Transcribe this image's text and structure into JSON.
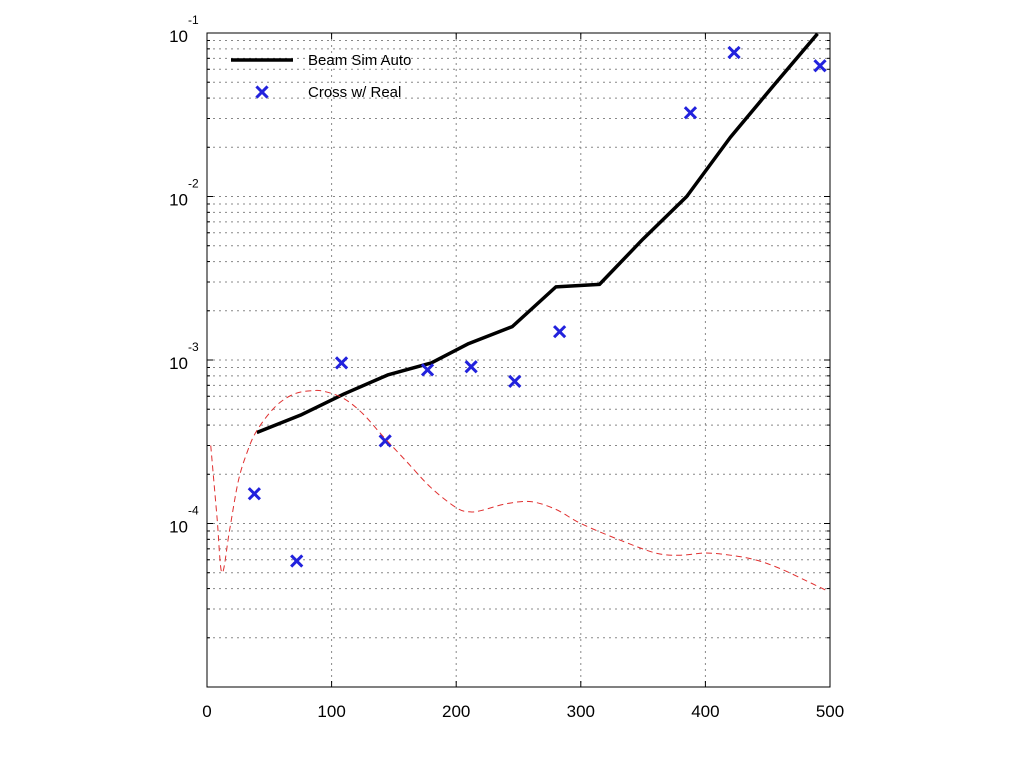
{
  "chart_data": {
    "type": "line",
    "title": "",
    "xlabel": "",
    "ylabel": "",
    "xlim": [
      0,
      500
    ],
    "ylog": true,
    "ylim": [
      1e-05,
      0.1
    ],
    "x_ticks": [
      0,
      100,
      200,
      300,
      400,
      500
    ],
    "x_tick_labels": [
      "0",
      "100",
      "200",
      "300",
      "400",
      "500"
    ],
    "y_ticks": [
      0.0001,
      0.001,
      0.01,
      0.1
    ],
    "y_tick_labels": [
      {
        "base": "10",
        "exp": "-4"
      },
      {
        "base": "10",
        "exp": "-3"
      },
      {
        "base": "10",
        "exp": "-2"
      },
      {
        "base": "10",
        "exp": "-1"
      }
    ],
    "grid": true,
    "legend_position": "top-left",
    "series": [
      {
        "name": "Beam Sim Auto",
        "style": "solid-line",
        "color": "#000000",
        "x": [
          40,
          75,
          110,
          145,
          180,
          210,
          245,
          280,
          315,
          350,
          385,
          420,
          455,
          490
        ],
        "y": [
          0.00036,
          0.00046,
          0.00062,
          0.00081,
          0.00096,
          0.00126,
          0.0016,
          0.0028,
          0.0029,
          0.0055,
          0.01,
          0.023,
          0.048,
          0.099
        ]
      },
      {
        "name": "Cross w/ Real",
        "style": "markers",
        "marker": "x",
        "color": "#2222dd",
        "x": [
          38,
          72,
          108,
          143,
          177,
          212,
          247,
          283,
          388,
          423,
          492
        ],
        "y": [
          0.000152,
          5.9e-05,
          0.00096,
          0.00032,
          0.00087,
          0.00091,
          0.00074,
          0.00149,
          0.0325,
          0.076,
          0.063
        ]
      },
      {
        "style": "dashed-line",
        "color": "#e03030",
        "x": [
          3,
          8,
          12,
          18,
          25,
          32,
          40,
          55,
          70,
          85,
          95,
          110,
          125,
          140,
          160,
          180,
          200,
          210,
          220,
          240,
          260,
          280,
          300,
          330,
          360,
          380,
          400,
          420,
          440,
          460,
          480,
          497
        ],
        "y": [
          0.0003,
          0.00011,
          5e-05,
          9e-05,
          0.00018,
          0.00027,
          0.00037,
          0.00052,
          0.00062,
          0.00065,
          0.00064,
          0.00058,
          0.00047,
          0.00035,
          0.00024,
          0.000165,
          0.000125,
          0.000118,
          0.00012,
          0.000132,
          0.000136,
          0.000122,
          0.0001,
          8e-05,
          6.6e-05,
          6.4e-05,
          6.6e-05,
          6.4e-05,
          6e-05,
          5.3e-05,
          4.5e-05,
          3.9e-05
        ]
      }
    ]
  }
}
